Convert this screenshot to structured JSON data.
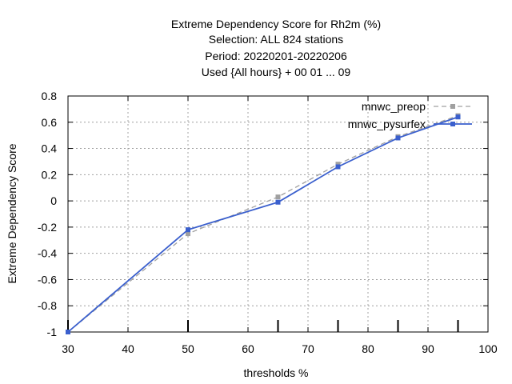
{
  "chart_data": {
    "type": "line",
    "title_lines": [
      "Extreme Dependency Score  for Rh2m (%)",
      "Selection: ALL    824 stations",
      "Period: 20220201-20220206",
      "Used {All hours} + 00 01 ... 09"
    ],
    "xlabel": "thresholds %",
    "ylabel": "Extreme Dependency Score",
    "xlim": [
      30,
      100
    ],
    "ylim": [
      -1,
      0.8
    ],
    "x_ticks": [
      30,
      40,
      50,
      60,
      70,
      80,
      90,
      100
    ],
    "y_ticks": [
      -1,
      -0.8,
      -0.6,
      -0.4,
      -0.2,
      0,
      0.2,
      0.4,
      0.6,
      0.8
    ],
    "x_tick_labels": [
      "30",
      "40",
      "50",
      "60",
      "70",
      "80",
      "90",
      "100"
    ],
    "y_tick_labels": [
      "-1",
      "-0.8",
      "-0.6",
      "-0.4",
      "-0.2",
      "0",
      "0.2",
      "0.4",
      "0.6",
      "0.8"
    ],
    "grid": true,
    "legend_position": "top-right",
    "threshold_markers": [
      30,
      50,
      65,
      75,
      85,
      95
    ],
    "series": [
      {
        "name": "mnwc_preop",
        "color": "#a0a0a0",
        "dashed": true,
        "x": [
          30,
          50,
          65,
          75,
          85,
          95
        ],
        "y": [
          -1,
          -0.25,
          0.03,
          0.28,
          0.49,
          0.65
        ],
        "err": [
          0.01,
          0.015,
          0.015,
          0.015,
          0.015,
          0.015
        ]
      },
      {
        "name": "mnwc_pysurfex",
        "color": "#3a5fcd",
        "dashed": false,
        "x": [
          30,
          50,
          65,
          75,
          85,
          95
        ],
        "y": [
          -1,
          -0.22,
          -0.01,
          0.26,
          0.48,
          0.64
        ],
        "err": [
          0.01,
          0.015,
          0.015,
          0.015,
          0.015,
          0.015
        ]
      }
    ]
  }
}
